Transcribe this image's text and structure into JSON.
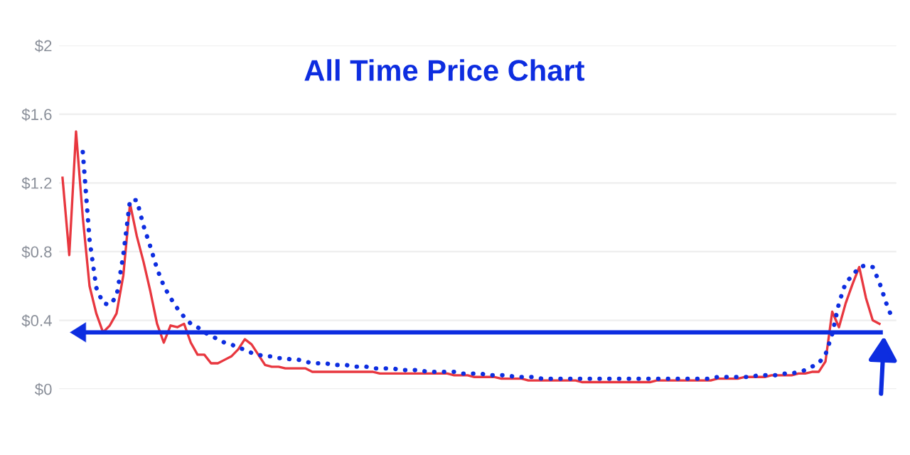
{
  "chart_data": {
    "type": "line",
    "title": "All Time Price Chart",
    "categories": [
      null,
      null,
      null,
      null,
      null,
      null,
      null,
      null,
      null,
      null,
      null,
      null,
      null,
      null,
      null,
      null,
      null,
      null,
      null,
      null,
      null,
      null,
      null,
      null,
      null,
      null,
      null,
      null,
      null,
      null,
      null,
      null,
      null,
      null,
      null,
      null,
      null,
      null,
      null,
      null,
      null,
      null,
      null,
      null,
      null,
      null,
      null,
      null,
      null,
      null,
      null,
      null,
      null,
      null,
      null,
      null,
      null,
      null,
      null,
      null,
      null,
      null,
      null,
      null,
      null,
      null,
      null,
      null,
      null,
      null,
      null,
      null,
      null,
      null,
      null,
      null,
      null,
      null,
      null,
      null,
      null,
      null,
      null,
      null,
      null,
      null,
      null,
      null,
      null,
      null,
      null,
      null,
      null,
      null,
      null,
      null,
      null,
      null,
      null,
      null,
      null,
      null,
      null,
      null,
      null,
      null,
      null,
      null,
      null,
      null,
      null,
      null,
      null,
      null,
      null,
      null,
      null,
      null,
      null,
      null,
      null,
      null,
      null,
      null
    ],
    "series": [
      {
        "color": "#e8373f",
        "line_style": "solid",
        "values": [
          1.23,
          0.78,
          1.5,
          1.0,
          0.6,
          0.44,
          0.33,
          0.37,
          0.44,
          0.66,
          1.08,
          0.89,
          0.74,
          0.57,
          0.38,
          0.27,
          0.37,
          0.36,
          0.38,
          0.27,
          0.2,
          0.2,
          0.15,
          0.15,
          0.17,
          0.19,
          0.23,
          0.29,
          0.26,
          0.2,
          0.14,
          0.13,
          0.13,
          0.12,
          0.12,
          0.12,
          0.12,
          0.1,
          0.1,
          0.1,
          0.1,
          0.1,
          0.1,
          0.1,
          0.1,
          0.1,
          0.1,
          0.09,
          0.09,
          0.09,
          0.09,
          0.09,
          0.09,
          0.09,
          0.09,
          0.09,
          0.09,
          0.09,
          0.08,
          0.08,
          0.08,
          0.07,
          0.07,
          0.07,
          0.07,
          0.06,
          0.06,
          0.06,
          0.06,
          0.05,
          0.05,
          0.05,
          0.05,
          0.05,
          0.05,
          0.05,
          0.05,
          0.04,
          0.04,
          0.04,
          0.04,
          0.04,
          0.04,
          0.04,
          0.04,
          0.04,
          0.04,
          0.04,
          0.05,
          0.05,
          0.05,
          0.05,
          0.05,
          0.05,
          0.05,
          0.05,
          0.05,
          0.06,
          0.06,
          0.06,
          0.06,
          0.07,
          0.07,
          0.07,
          0.07,
          0.08,
          0.08,
          0.08,
          0.08,
          0.09,
          0.09,
          0.1,
          0.1,
          0.16,
          0.45,
          0.36,
          0.5,
          0.61,
          0.71,
          0.53,
          0.4,
          0.38,
          null,
          null
        ]
      },
      {
        "color": "#0d2de0",
        "line_style": "dotted",
        "values": [
          null,
          null,
          null,
          1.38,
          0.87,
          0.59,
          0.5,
          0.49,
          0.54,
          0.78,
          1.1,
          1.1,
          0.95,
          0.83,
          0.7,
          0.6,
          0.53,
          0.47,
          0.42,
          0.38,
          0.36,
          0.33,
          0.31,
          0.29,
          0.27,
          0.26,
          0.24,
          0.23,
          0.21,
          0.2,
          0.19,
          0.19,
          0.18,
          0.18,
          0.17,
          0.17,
          0.16,
          0.15,
          0.15,
          0.15,
          0.14,
          0.14,
          0.14,
          0.13,
          0.13,
          0.13,
          0.12,
          0.12,
          0.12,
          0.12,
          0.11,
          0.11,
          0.11,
          0.11,
          0.1,
          0.1,
          0.1,
          0.1,
          0.1,
          0.09,
          0.09,
          0.09,
          0.09,
          0.08,
          0.08,
          0.08,
          0.08,
          0.07,
          0.07,
          0.07,
          0.07,
          0.06,
          0.06,
          0.06,
          0.06,
          0.06,
          0.06,
          0.06,
          0.06,
          0.06,
          0.06,
          0.06,
          0.06,
          0.06,
          0.06,
          0.06,
          0.06,
          0.06,
          0.06,
          0.06,
          0.06,
          0.06,
          0.06,
          0.06,
          0.06,
          0.06,
          0.06,
          0.07,
          0.07,
          0.07,
          0.07,
          0.07,
          0.07,
          0.08,
          0.08,
          0.08,
          0.08,
          0.09,
          0.09,
          0.1,
          0.11,
          0.13,
          0.15,
          0.2,
          0.32,
          0.5,
          0.62,
          0.66,
          0.71,
          0.72,
          0.71,
          0.62,
          0.5,
          0.4
        ]
      }
    ],
    "ylim": [
      0,
      2
    ],
    "yticks": [
      {
        "value": 0,
        "label": "$0"
      },
      {
        "value": 0.4,
        "label": "$0.4"
      },
      {
        "value": 0.8,
        "label": "$0.8"
      },
      {
        "value": 1.2,
        "label": "$1.2"
      },
      {
        "value": 1.6,
        "label": "$1.6"
      },
      {
        "value": 2,
        "label": "$2"
      }
    ],
    "grid": "y",
    "tick_labels": "y",
    "ref_lines": [
      {
        "axis": "y",
        "value": 0.33,
        "color": "#0d2de0"
      }
    ]
  }
}
